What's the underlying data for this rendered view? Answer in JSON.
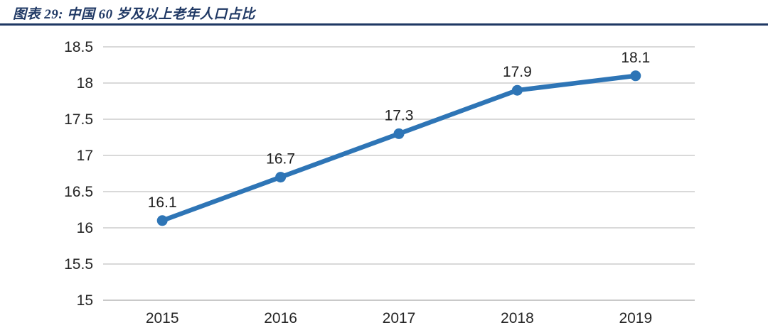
{
  "header": {
    "title": "图表 29:  中国 60 岁及以上老年人口占比"
  },
  "colors": {
    "accent": "#2E75B6",
    "title_text": "#1F3864",
    "title_rule": "#1F3864",
    "gridline": "#D9D9D9",
    "axis_line": "#C9C9C9",
    "axis_text": "#262626",
    "background": "#FFFFFF"
  },
  "chart_data": {
    "type": "line",
    "title": "图表 29:  中国 60 岁及以上老年人口占比",
    "categories": [
      "2015",
      "2016",
      "2017",
      "2018",
      "2019"
    ],
    "values": [
      16.1,
      16.7,
      17.3,
      17.9,
      18.1
    ],
    "data_labels": [
      "16.1",
      "16.7",
      "17.3",
      "17.9",
      "18.1"
    ],
    "xlabel": "",
    "ylabel": "",
    "ylim": [
      15,
      18.5
    ],
    "yticks": [
      15,
      15.5,
      16,
      16.5,
      17,
      17.5,
      18,
      18.5
    ],
    "grid": true,
    "legend_position": "none",
    "line_color": "#2E75B6",
    "marker": "circle"
  }
}
